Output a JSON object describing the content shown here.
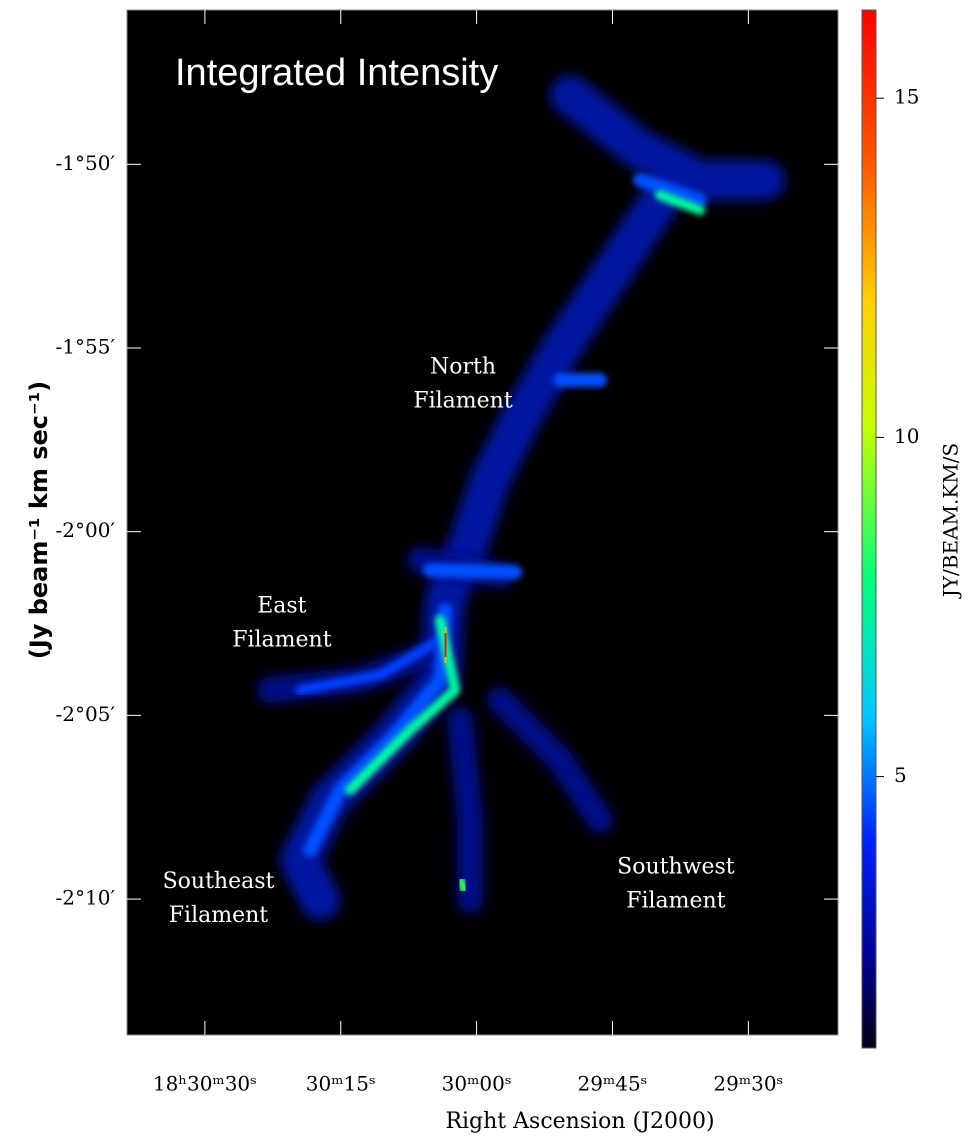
{
  "chart_data": {
    "type": "image",
    "title": "Integrated Intensity",
    "xlabel": "Right Ascension (J2000)",
    "ylabel": "(Jy beam⁻¹ km sec⁻¹)",
    "xlim": [
      1838.6,
      1760.1
    ],
    "xticks": [
      {
        "value": 1830,
        "label": "18ʰ30ᵐ30ˢ"
      },
      {
        "value": 1815,
        "label": "30ᵐ15ˢ"
      },
      {
        "value": 1800,
        "label": "30ᵐ00ˢ"
      },
      {
        "value": 1785,
        "label": "29ᵐ45ˢ"
      },
      {
        "value": 1770,
        "label": "29ᵐ30ˢ"
      }
    ],
    "ylim": [
      -133.7,
      -105.8
    ],
    "yticks": [
      {
        "value": -110,
        "label": "-1°50′"
      },
      {
        "value": -115,
        "label": "-1°55′"
      },
      {
        "value": -120,
        "label": "-2°00′"
      },
      {
        "value": -125,
        "label": "-2°05′"
      },
      {
        "value": -130,
        "label": "-2°10′"
      }
    ],
    "colorbar": {
      "label": "JY/BEAM.KM/S",
      "lim": [
        1,
        16.3
      ],
      "ticks": [
        5,
        10,
        15
      ]
    },
    "annotations": [
      {
        "lines": [
          "North",
          "Filament"
        ],
        "x": 1801.5,
        "y": -116
      },
      {
        "lines": [
          "East",
          "Filament"
        ],
        "x": 1821.5,
        "y": -122.5
      },
      {
        "lines": [
          "Southeast",
          "Filament"
        ],
        "x": 1828.5,
        "y": -130
      },
      {
        "lines": [
          "Southwest",
          "Filament"
        ],
        "x": 1778,
        "y": -129.6
      }
    ]
  }
}
